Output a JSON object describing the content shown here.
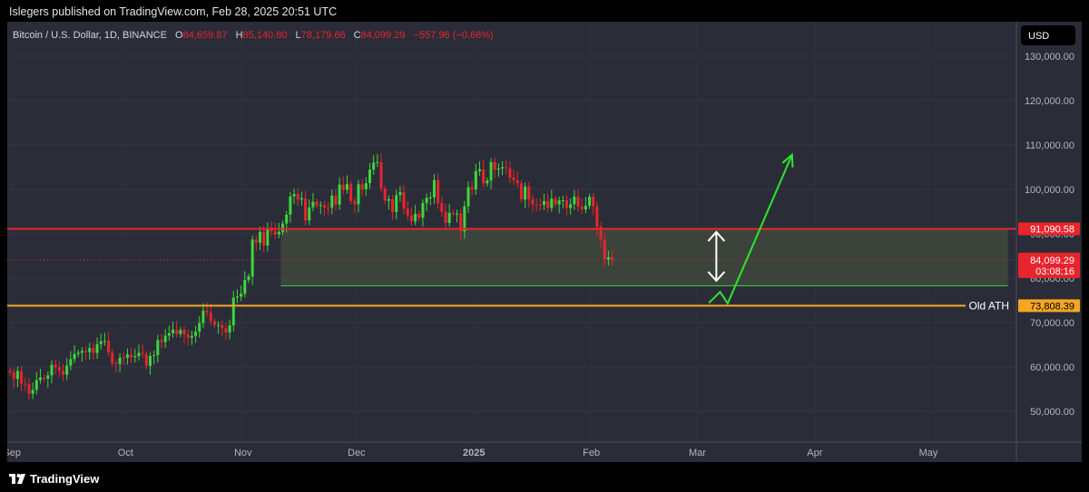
{
  "header": {
    "publisher_text": "Islegers published on TradingView.com, Feb 28, 2025 20:51 UTC"
  },
  "legend": {
    "symbol": "Bitcoin / U.S. Dollar, 1D, BINANCE",
    "o_label": "O",
    "o_value": "84,659.87",
    "h_label": "H",
    "h_value": "85,140.80",
    "l_label": "L",
    "l_value": "78,179.66",
    "c_label": "C",
    "c_value": "84,099.29",
    "change": "−557.96 (−0.66%)"
  },
  "currency_label": "USD",
  "footer": {
    "brand": "TradingView"
  },
  "colors": {
    "background": "#2a2d38",
    "up": "#3ed63b",
    "down": "#e8242c",
    "resistance": "#e8242c",
    "support": "#f5a623",
    "zone": "#41483c",
    "arrow": "#ffffff",
    "projection": "#2ee62a"
  },
  "chart_data": {
    "type": "candlestick",
    "symbol": "Bitcoin / U.S. Dollar",
    "interval": "1D",
    "exchange": "BINANCE",
    "ylim": [
      40000,
      137000
    ],
    "x_range": [
      "2024-08-31",
      "2025-05-21"
    ],
    "y_ticks": [
      "130,000.00",
      "120,000.00",
      "110,000.00",
      "100,000.00",
      "90,000.00",
      "80,000.00",
      "70,000.00",
      "60,000.00",
      "50,000.00"
    ],
    "y_tick_values": [
      130000,
      120000,
      110000,
      100000,
      90000,
      80000,
      70000,
      60000,
      50000
    ],
    "x_ticks": [
      {
        "label": "Sep",
        "date": "2024-09-01",
        "bold": false
      },
      {
        "label": "Oct",
        "date": "2024-10-01",
        "bold": false
      },
      {
        "label": "Nov",
        "date": "2024-11-01",
        "bold": false
      },
      {
        "label": "Dec",
        "date": "2024-12-01",
        "bold": false
      },
      {
        "label": "2025",
        "date": "2025-01-01",
        "bold": true
      },
      {
        "label": "Feb",
        "date": "2025-02-01",
        "bold": false
      },
      {
        "label": "Mar",
        "date": "2025-03-01",
        "bold": false
      },
      {
        "label": "Apr",
        "date": "2025-04-01",
        "bold": false
      },
      {
        "label": "May",
        "date": "2025-05-01",
        "bold": false
      }
    ],
    "series_start": "2024-08-31",
    "candles": [
      [
        59100,
        58800
      ],
      [
        58800,
        57300
      ],
      [
        57300,
        59100
      ],
      [
        59100,
        56200
      ],
      [
        56200,
        56100
      ],
      [
        56100,
        53950
      ],
      [
        53950,
        54850
      ],
      [
        54850,
        57050
      ],
      [
        57050,
        57600
      ],
      [
        57600,
        57350
      ],
      [
        57350,
        58100
      ],
      [
        58100,
        60500
      ],
      [
        60500,
        59950
      ],
      [
        59950,
        59150
      ],
      [
        59150,
        58200
      ],
      [
        58200,
        60300
      ],
      [
        60300,
        61750
      ],
      [
        61750,
        62900
      ],
      [
        62900,
        63200
      ],
      [
        63200,
        63600
      ],
      [
        63600,
        63350
      ],
      [
        63350,
        64250
      ],
      [
        64250,
        63150
      ],
      [
        63150,
        65150
      ],
      [
        65150,
        65800
      ],
      [
        65800,
        65850
      ],
      [
        65850,
        63300
      ],
      [
        63300,
        60800
      ],
      [
        60800,
        60650
      ],
      [
        60650,
        62100
      ],
      [
        62100,
        62050
      ],
      [
        62050,
        62800
      ],
      [
        62800,
        62200
      ],
      [
        62200,
        62450
      ],
      [
        62450,
        63200
      ],
      [
        63200,
        62900
      ],
      [
        62900,
        60250
      ],
      [
        60250,
        62450
      ],
      [
        62450,
        62650
      ],
      [
        62650,
        66050
      ],
      [
        66050,
        65600
      ],
      [
        65600,
        67050
      ],
      [
        67050,
        67600
      ],
      [
        67600,
        68400
      ],
      [
        68400,
        67400
      ],
      [
        67400,
        68300
      ],
      [
        68300,
        67350
      ],
      [
        67350,
        66600
      ],
      [
        66600,
        67000
      ],
      [
        67000,
        67950
      ],
      [
        67950,
        69900
      ],
      [
        69900,
        72700
      ],
      [
        72700,
        72300
      ],
      [
        72300,
        70300
      ],
      [
        70300,
        69450
      ],
      [
        69450,
        69450
      ],
      [
        69450,
        68750
      ],
      [
        68750,
        67750
      ],
      [
        67750,
        69350
      ],
      [
        69350,
        75600
      ],
      [
        75600,
        75850
      ],
      [
        75850,
        76500
      ],
      [
        76500,
        79600
      ],
      [
        79600,
        80400
      ],
      [
        80400,
        88700
      ],
      [
        88700,
        87950
      ],
      [
        87950,
        90450
      ],
      [
        90450,
        87350
      ],
      [
        87350,
        91050
      ],
      [
        91050,
        90600
      ],
      [
        90600,
        89850
      ],
      [
        89850,
        90450
      ],
      [
        90450,
        92300
      ],
      [
        92300,
        94300
      ],
      [
        94300,
        98400
      ],
      [
        98400,
        98950
      ],
      [
        98950,
        97700
      ],
      [
        97700,
        98000
      ],
      [
        98000,
        93000
      ],
      [
        93000,
        95950
      ],
      [
        95950,
        97200
      ],
      [
        97200,
        96400
      ],
      [
        96400,
        96450
      ],
      [
        96450,
        95900
      ],
      [
        95900,
        95850
      ],
      [
        95850,
        98600
      ],
      [
        98600,
        96550
      ],
      [
        96550,
        101100
      ],
      [
        101100,
        99900
      ],
      [
        99900,
        101200
      ],
      [
        101200,
        97350
      ],
      [
        97350,
        96650
      ],
      [
        96650,
        101150
      ],
      [
        101150,
        100000
      ],
      [
        100000,
        101400
      ],
      [
        101400,
        104450
      ],
      [
        104450,
        106050
      ],
      [
        106050,
        106150
      ],
      [
        106150,
        100200
      ],
      [
        100200,
        97450
      ],
      [
        97450,
        97800
      ],
      [
        97800,
        94900
      ],
      [
        94900,
        98700
      ],
      [
        98700,
        99400
      ],
      [
        99400,
        95700
      ],
      [
        95700,
        94150
      ],
      [
        94150,
        92800
      ],
      [
        92800,
        94500
      ],
      [
        94500,
        93600
      ],
      [
        93600,
        96900
      ],
      [
        96900,
        98100
      ],
      [
        98100,
        98200
      ],
      [
        98200,
        102100
      ],
      [
        102100,
        96900
      ],
      [
        96900,
        95000
      ],
      [
        95000,
        92450
      ],
      [
        92450,
        94700
      ],
      [
        94700,
        94550
      ],
      [
        94550,
        94550
      ],
      [
        94550,
        90550
      ],
      [
        90550,
        96200
      ],
      [
        96200,
        100500
      ],
      [
        100500,
        99950
      ],
      [
        99950,
        104100
      ],
      [
        104100,
        104550
      ],
      [
        104550,
        101350
      ],
      [
        101350,
        102000
      ],
      [
        102000,
        106150
      ],
      [
        106150,
        104450
      ],
      [
        104450,
        104700
      ],
      [
        104700,
        105000
      ],
      [
        105000,
        104750
      ],
      [
        104750,
        102650
      ],
      [
        102650,
        102050
      ],
      [
        102050,
        101350
      ],
      [
        101350,
        97700
      ],
      [
        97700,
        100650
      ],
      [
        100650,
        97700
      ],
      [
        97700,
        96600
      ],
      [
        96600,
        96550
      ],
      [
        96550,
        96500
      ],
      [
        96500,
        97350
      ],
      [
        97350,
        95800
      ],
      [
        95800,
        97900
      ],
      [
        97900,
        96600
      ],
      [
        96600,
        97500
      ],
      [
        97500,
        97550
      ],
      [
        97550,
        95800
      ],
      [
        95800,
        96650
      ],
      [
        96650,
        98350
      ],
      [
        98350,
        96100
      ],
      [
        96100,
        95500
      ],
      [
        95500,
        96300
      ],
      [
        96300,
        98350
      ],
      [
        98350,
        96200
      ],
      [
        96200,
        91550
      ],
      [
        91550,
        88700
      ],
      [
        88700,
        84250
      ],
      [
        84250,
        84700
      ],
      [
        84700,
        84099
      ]
    ],
    "annotations": [
      {
        "type": "hline",
        "price": 91090.58,
        "label": "91,090.58",
        "color": "resistance"
      },
      {
        "type": "hline",
        "price": 73808.39,
        "label": "73,808.39",
        "text": "Old ATH",
        "color": "support"
      },
      {
        "type": "zone",
        "from_date": "2024-11-11",
        "to_date": "2025-05-22",
        "low": 78300,
        "high": 90950
      },
      {
        "type": "double-arrow",
        "date": "2025-03-06",
        "top": 90400,
        "bottom": 79400
      },
      {
        "type": "projection",
        "points": [
          [
            "2025-03-04",
            74400
          ],
          [
            "2025-03-07",
            76900
          ],
          [
            "2025-03-09",
            74300
          ],
          [
            "2025-03-26",
            107800
          ]
        ]
      }
    ],
    "last_price": {
      "value": "84,099.29",
      "countdown": "03:08:16"
    }
  }
}
